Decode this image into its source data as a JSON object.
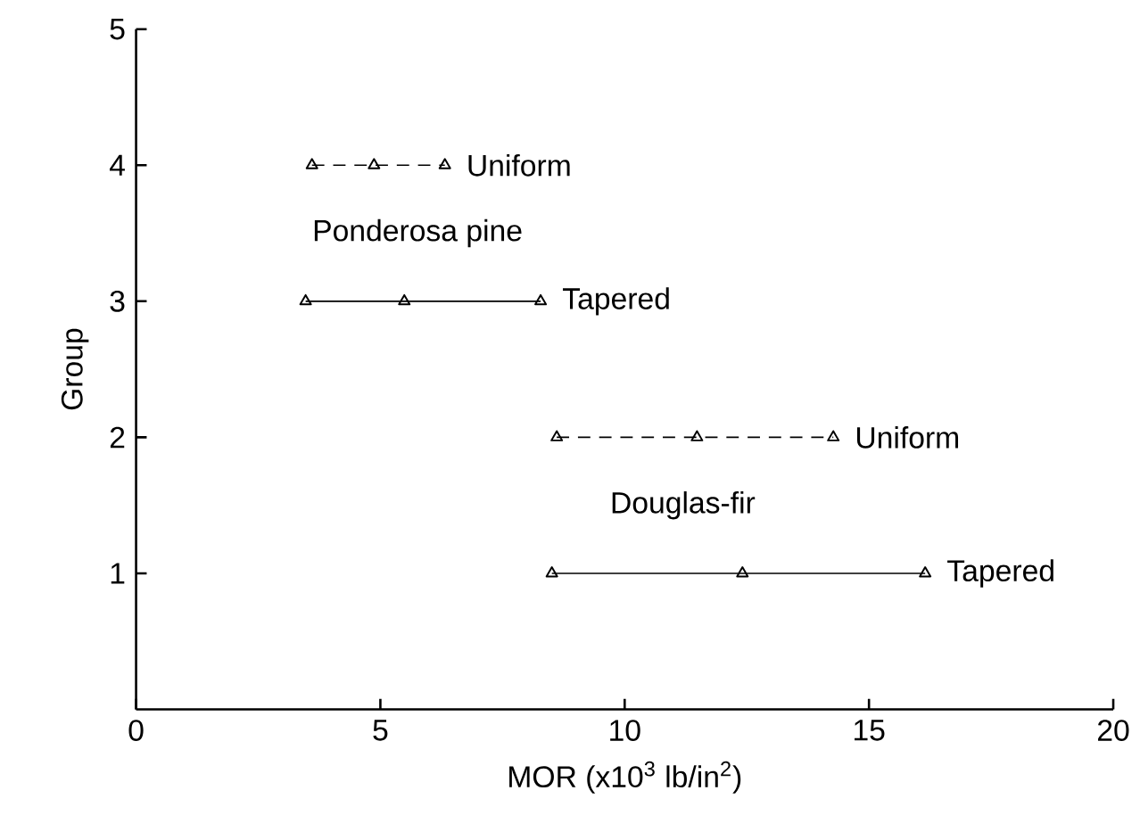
{
  "chart_data": {
    "type": "line",
    "xlabel": "MOR (x10$^{3}$ lb/in$^{2}$)",
    "ylabel": "Group",
    "xlim": [
      0,
      20
    ],
    "xticks": [
      0,
      5,
      10,
      15,
      20
    ],
    "ylim": [
      0,
      5
    ],
    "yticks": [
      1,
      2,
      3,
      4,
      5
    ],
    "grid": false,
    "series": [
      {
        "name": "Uniform",
        "color": "#000000",
        "x": [
          3.6,
          4.87,
          6.32
        ],
        "values": [
          4,
          4,
          4
        ],
        "marker": "triangle",
        "line_style": "dashed"
      },
      {
        "name": "Tapered",
        "color": "#000000",
        "x": [
          3.47,
          5.49,
          8.28
        ],
        "values": [
          3,
          3,
          3
        ],
        "marker": "triangle",
        "line_style": "solid"
      },
      {
        "name": "Uniform",
        "color": "#000000",
        "x": [
          8.61,
          11.48,
          14.27
        ],
        "values": [
          2,
          2,
          2
        ],
        "marker": "triangle",
        "line_style": "dashed"
      },
      {
        "name": "Tapered",
        "color": "#000000",
        "x": [
          8.51,
          12.41,
          16.15
        ],
        "values": [
          1,
          1,
          1
        ],
        "marker": "triangle",
        "line_style": "solid"
      }
    ],
    "annotations": [
      "Ponderosa pine",
      "Douglas-fir"
    ]
  }
}
